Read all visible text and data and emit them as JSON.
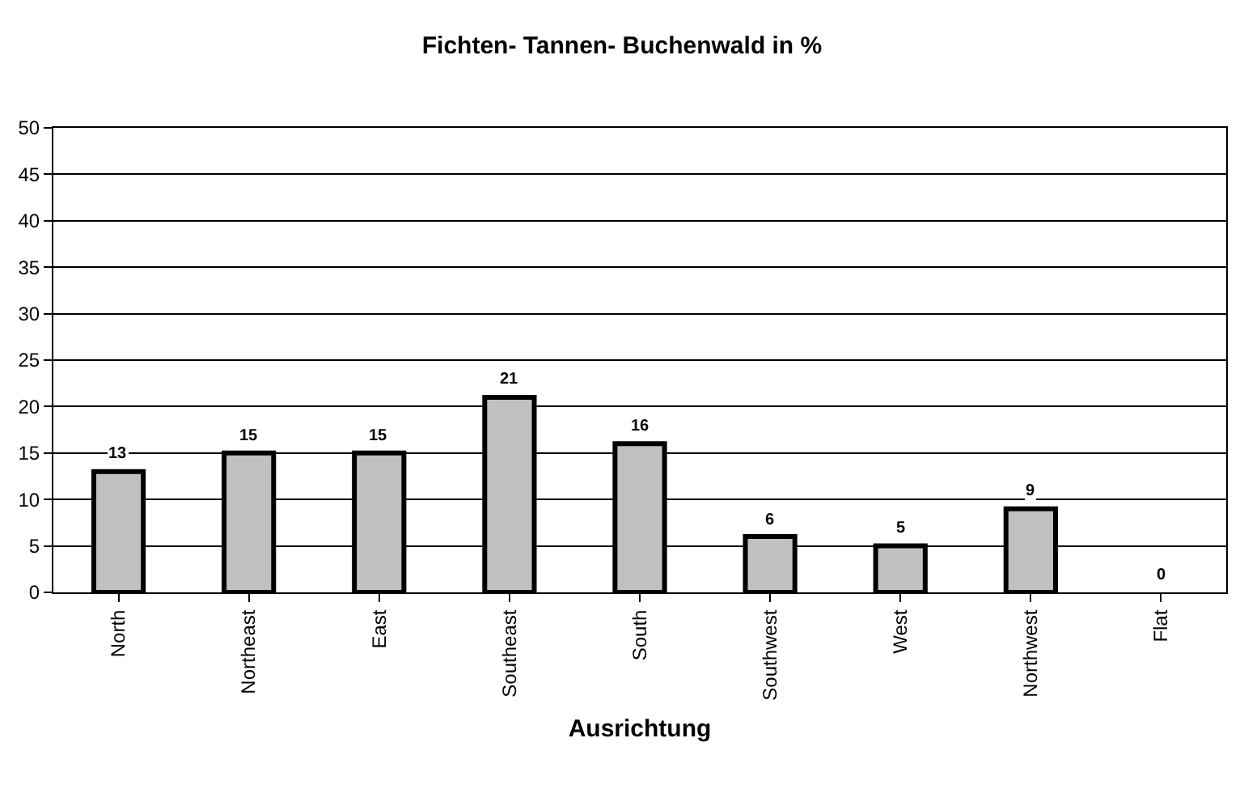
{
  "chart_data": {
    "type": "bar",
    "title": "Fichten- Tannen- Buchenwald in %",
    "xlabel": "Ausrichtung",
    "categories": [
      "North",
      "Northeast",
      "East",
      "Southeast",
      "South",
      "Southwest",
      "West",
      "Northwest",
      "Flat"
    ],
    "values": [
      13,
      15,
      15,
      21,
      16,
      6,
      5,
      9,
      0
    ],
    "color": "#c0c0c0",
    "ylim": [
      0,
      50
    ],
    "yticks": [
      0,
      5,
      10,
      15,
      20,
      25,
      30,
      35,
      40,
      45,
      50
    ],
    "grid": "y",
    "data_labels": true
  }
}
